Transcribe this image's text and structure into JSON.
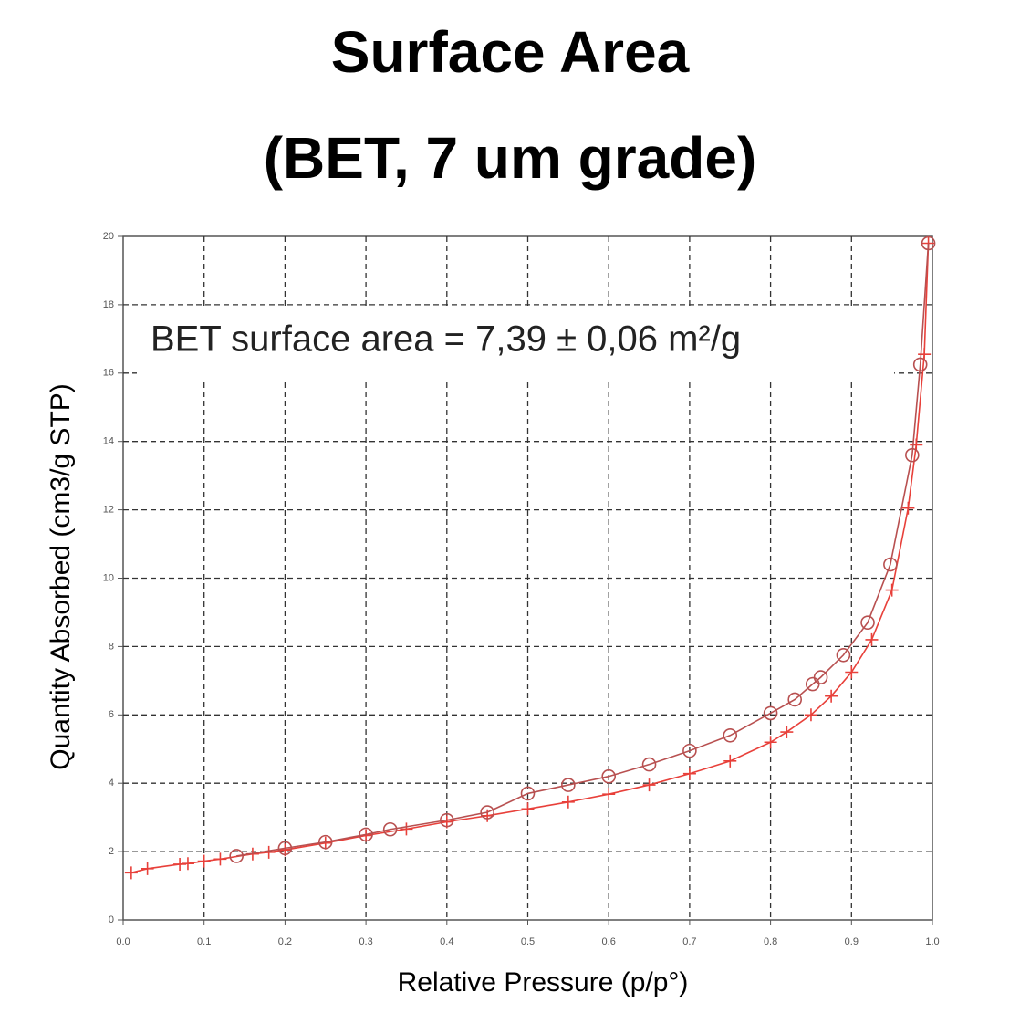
{
  "chart_data": {
    "type": "line",
    "title": [
      "Surface Area",
      "(BET, 7 um grade)"
    ],
    "annotation": "BET surface area = 7,39 ± 0,06 m²/g",
    "x_label": "Relative Pressure (p/p°)",
    "y_label": "Quantity Absorbed (cm3/g STP)",
    "xlim": [
      0,
      1
    ],
    "ylim": [
      0,
      20
    ],
    "xticks": [
      {
        "value": 0,
        "label": "0.0"
      },
      0.1,
      0.2,
      0.3,
      0.4,
      0.5,
      0.6,
      0.7,
      0.8,
      0.9,
      {
        "value": 1,
        "label": "1.0"
      }
    ],
    "yticks": [
      0,
      2,
      4,
      6,
      8,
      10,
      12,
      14,
      16,
      18,
      20
    ],
    "grid": true,
    "series": [
      {
        "color": "#e8403a",
        "marker": "plus",
        "x": [
          0.01,
          0.03,
          0.07,
          0.08,
          0.1,
          0.12,
          0.16,
          0.18,
          0.2,
          0.25,
          0.3,
          0.35,
          0.4,
          0.45,
          0.5,
          0.55,
          0.6,
          0.65,
          0.7,
          0.75,
          0.8,
          0.82,
          0.85,
          0.875,
          0.9,
          0.925,
          0.95,
          0.97,
          0.98,
          0.99,
          0.995
        ],
        "values": [
          1.38,
          1.5,
          1.63,
          1.65,
          1.72,
          1.78,
          1.93,
          1.98,
          2.05,
          2.25,
          2.47,
          2.66,
          2.87,
          3.05,
          3.25,
          3.45,
          3.68,
          3.95,
          4.28,
          4.65,
          5.2,
          5.5,
          6.0,
          6.55,
          7.25,
          8.2,
          9.65,
          12.05,
          13.9,
          16.55,
          19.8
        ]
      },
      {
        "color": "#b85050",
        "marker": "circle",
        "x": [
          0.995,
          0.985,
          0.975,
          0.948,
          0.92,
          0.89,
          0.862,
          0.852,
          0.83,
          0.8,
          0.75,
          0.7,
          0.65,
          0.6,
          0.55,
          0.5,
          0.45,
          0.4,
          0.33,
          0.3,
          0.25,
          0.2,
          0.14
        ],
        "values": [
          19.8,
          16.25,
          13.6,
          10.4,
          8.7,
          7.75,
          7.1,
          6.9,
          6.45,
          6.05,
          5.4,
          4.95,
          4.55,
          4.2,
          3.95,
          3.7,
          3.15,
          2.92,
          2.65,
          2.5,
          2.28,
          2.1,
          1.87
        ]
      }
    ]
  }
}
